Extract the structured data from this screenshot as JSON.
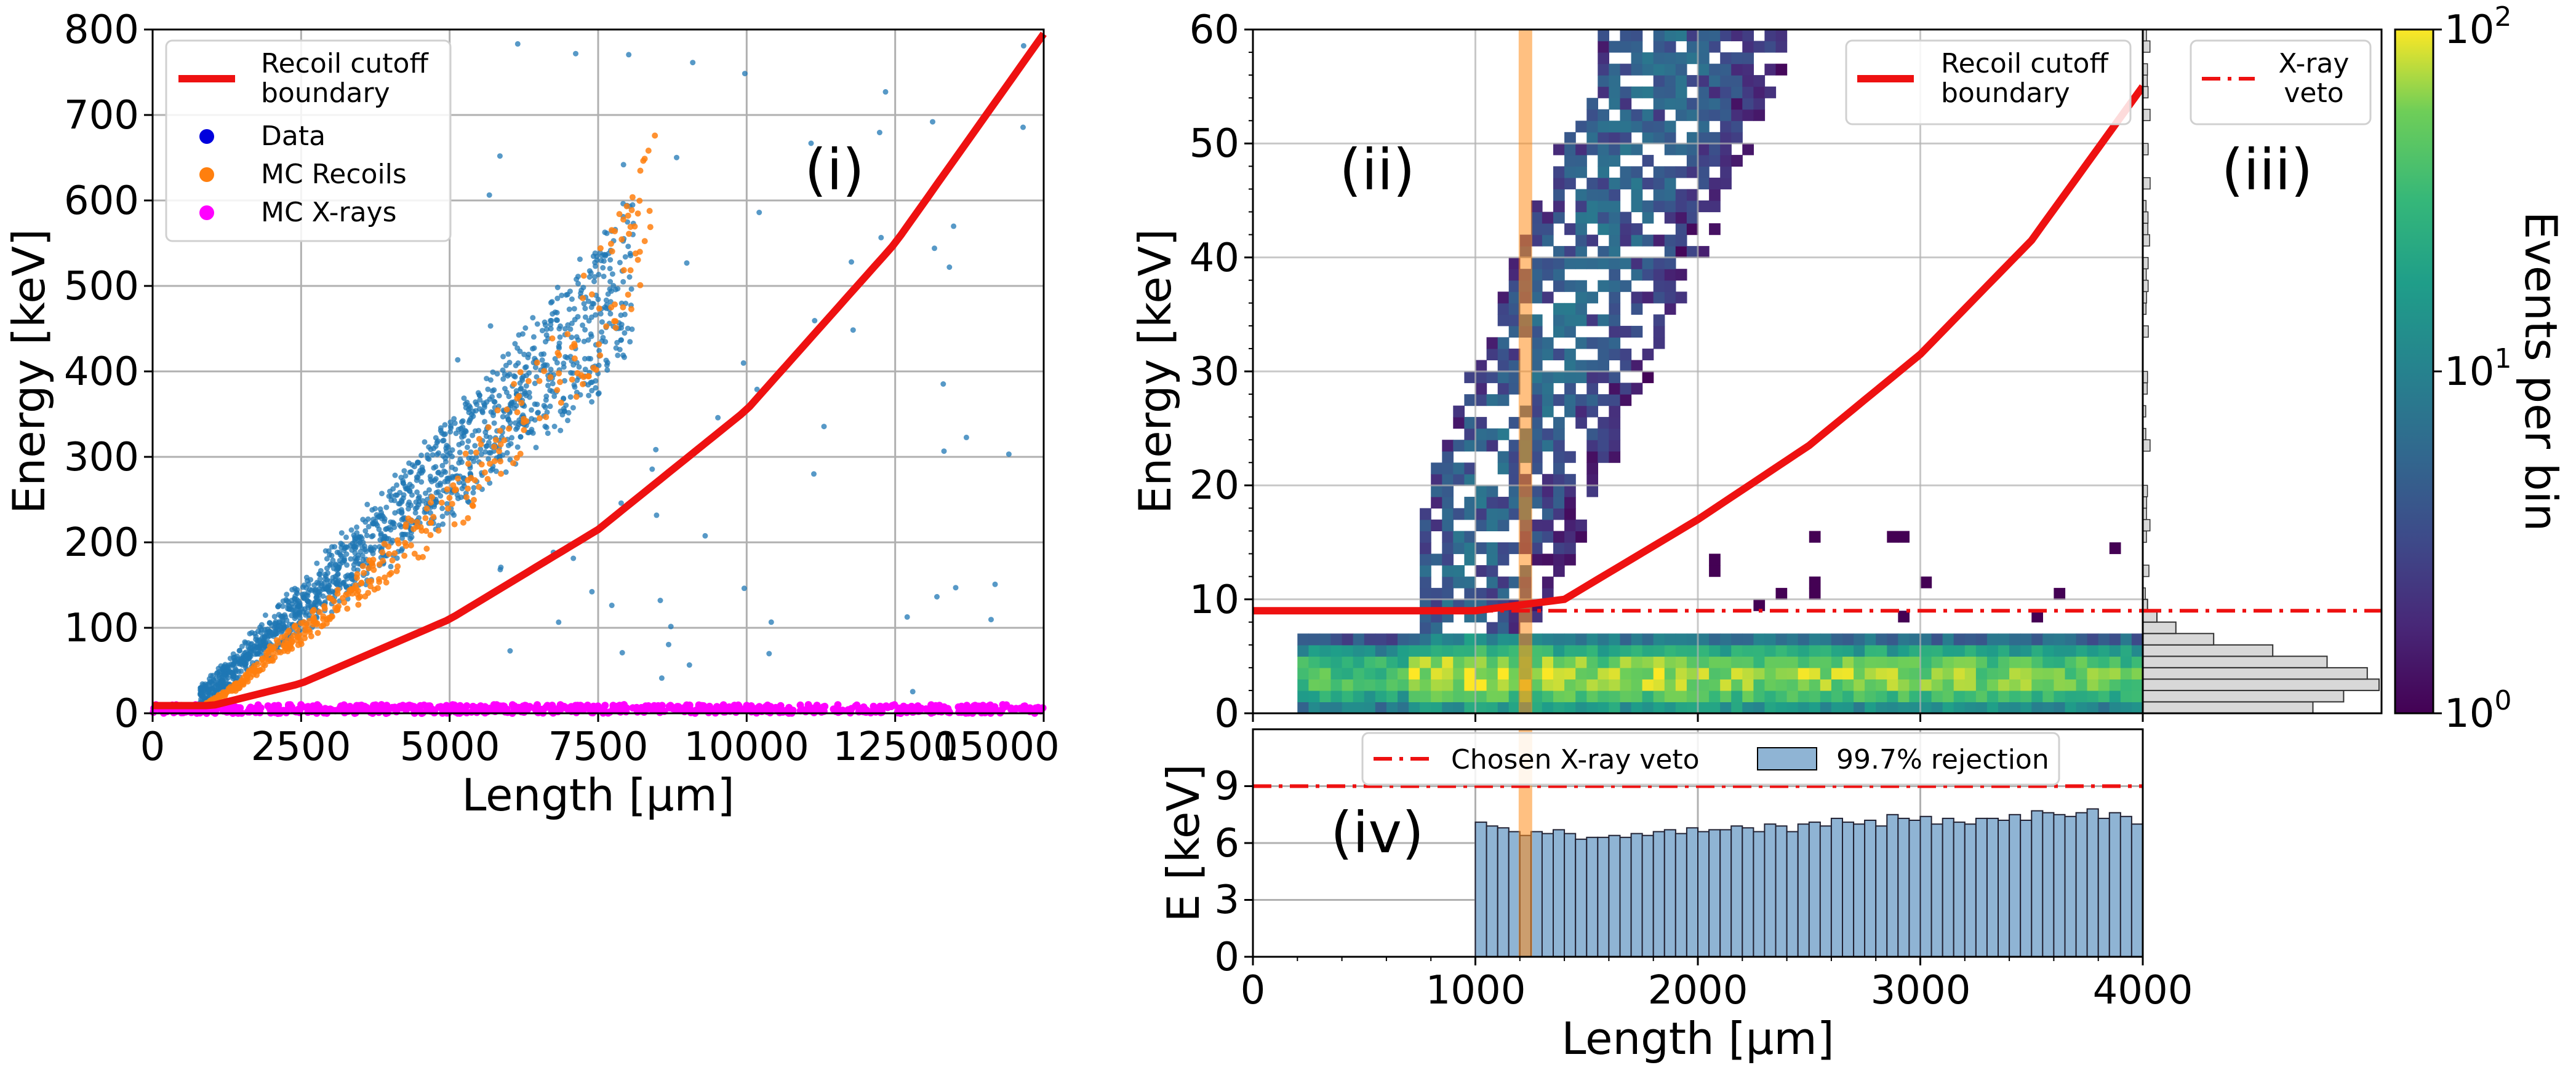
{
  "colors": {
    "cutoff": "#ee1111",
    "data": "#1f77b4",
    "data_legend": "#0000dd",
    "mc_recoils": "#ff7f0e",
    "mc_xrays": "#ff00ff",
    "veto_band": "#ff8c1a",
    "veto_hist": "#8fb4d4"
  },
  "chart_data": [
    {
      "id": "i",
      "type": "scatter",
      "panel_label": "(i)",
      "xlabel": "Length [µm]",
      "ylabel": "Energy [keV]",
      "xlim": [
        0,
        15000
      ],
      "ylim": [
        0,
        800
      ],
      "xticks": [
        "0",
        "2500",
        "5000",
        "7500",
        "10000",
        "12500",
        "15000"
      ],
      "yticks": [
        "0",
        "100",
        "200",
        "300",
        "400",
        "500",
        "600",
        "700",
        "800"
      ],
      "grid": true,
      "legend_position": "top-left",
      "legend": [
        "Recoil cutoff boundary",
        "Data",
        "MC Recoils",
        "MC X-rays"
      ],
      "cutoff_curve": {
        "x": [
          0,
          1000,
          2500,
          5000,
          7500,
          10000,
          12500,
          15000
        ],
        "y": [
          9,
          9,
          35,
          110,
          215,
          355,
          550,
          795
        ]
      },
      "series": [
        {
          "name": "Data",
          "trend": {
            "x": [
              800,
              1500,
              2500,
              3500,
              4500,
              5500,
              6500,
              7500,
              8000
            ],
            "y": [
              15,
              60,
              125,
              190,
              255,
              320,
              390,
              465,
              510
            ]
          }
        },
        {
          "name": "MC Recoils",
          "trend": {
            "x": [
              900,
              1500,
              2000,
              3000,
              4000,
              5000,
              6000,
              7000,
              8000,
              8500
            ],
            "y": [
              10,
              35,
              70,
              120,
              180,
              240,
              330,
              420,
              530,
              600
            ]
          }
        },
        {
          "name": "MC X-rays",
          "trend": {
            "x": [
              0,
              15000
            ],
            "y": [
              3,
              3
            ]
          }
        }
      ]
    },
    {
      "id": "ii",
      "type": "heatmap",
      "panel_label": "(ii)",
      "xlabel": "Length [µm]",
      "ylabel": "Energy [keV]",
      "xlim": [
        0,
        4000
      ],
      "ylim": [
        0,
        60
      ],
      "yticks": [
        "0",
        "10",
        "20",
        "30",
        "40",
        "50",
        "60"
      ],
      "grid": true,
      "legend_position": "top-right",
      "legend": [
        "Recoil cutoff boundary"
      ],
      "cutoff_curve": {
        "x": [
          0,
          1000,
          1400,
          2000,
          2500,
          3000,
          3500,
          4000
        ],
        "y": [
          9,
          9,
          10,
          17,
          23.5,
          31.5,
          41.5,
          55
        ]
      },
      "xray_veto_keV": 9,
      "veto_length_um": 1225,
      "colorbar": {
        "label": "Events per bin",
        "scale": "log",
        "range": [
          1,
          100
        ],
        "ticks": [
          "10",
          "10",
          "10"
        ],
        "tick_exponents": [
          "0",
          "1",
          "2"
        ]
      }
    },
    {
      "id": "iii",
      "type": "bar",
      "panel_label": "(iii)",
      "orientation": "horizontal",
      "legend": [
        "X-ray veto"
      ],
      "energy_keV": [
        0.5,
        1.5,
        2.5,
        3.5,
        4.5,
        5.5,
        6.5,
        7.5,
        8.5,
        9.5
      ],
      "relative_counts": [
        0.72,
        0.85,
        1.0,
        0.95,
        0.78,
        0.55,
        0.3,
        0.14,
        0.06,
        0.02
      ]
    },
    {
      "id": "iv",
      "type": "bar",
      "panel_label": "(iv)",
      "xlabel": "Length [µm]",
      "ylabel": "E [keV]",
      "xlim": [
        0,
        4000
      ],
      "ylim": [
        0,
        12
      ],
      "xticks": [
        "0",
        "1000",
        "2000",
        "3000",
        "4000"
      ],
      "yticks": [
        "0",
        "3",
        "6",
        "9"
      ],
      "grid": true,
      "legend": [
        "Chosen X-ray veto",
        "99.7% rejection"
      ],
      "chosen_veto_keV": 9,
      "bin_start_um": 1000,
      "bin_width_um": 50,
      "values": [
        7.1,
        6.9,
        6.8,
        6.6,
        6.4,
        6.6,
        6.5,
        6.7,
        6.5,
        6.2,
        6.3,
        6.3,
        6.4,
        6.3,
        6.5,
        6.4,
        6.6,
        6.7,
        6.5,
        6.8,
        6.6,
        6.7,
        6.7,
        6.9,
        6.8,
        6.6,
        7.0,
        6.9,
        6.6,
        7.0,
        7.1,
        6.9,
        7.3,
        7.1,
        7.0,
        7.2,
        6.9,
        7.5,
        7.3,
        7.2,
        7.4,
        7.0,
        7.3,
        7.1,
        7.0,
        7.3,
        7.3,
        7.2,
        7.5,
        7.2,
        7.7,
        7.6,
        7.5,
        7.4,
        7.6,
        7.8,
        7.3,
        7.6,
        7.4,
        7.0
      ]
    }
  ]
}
